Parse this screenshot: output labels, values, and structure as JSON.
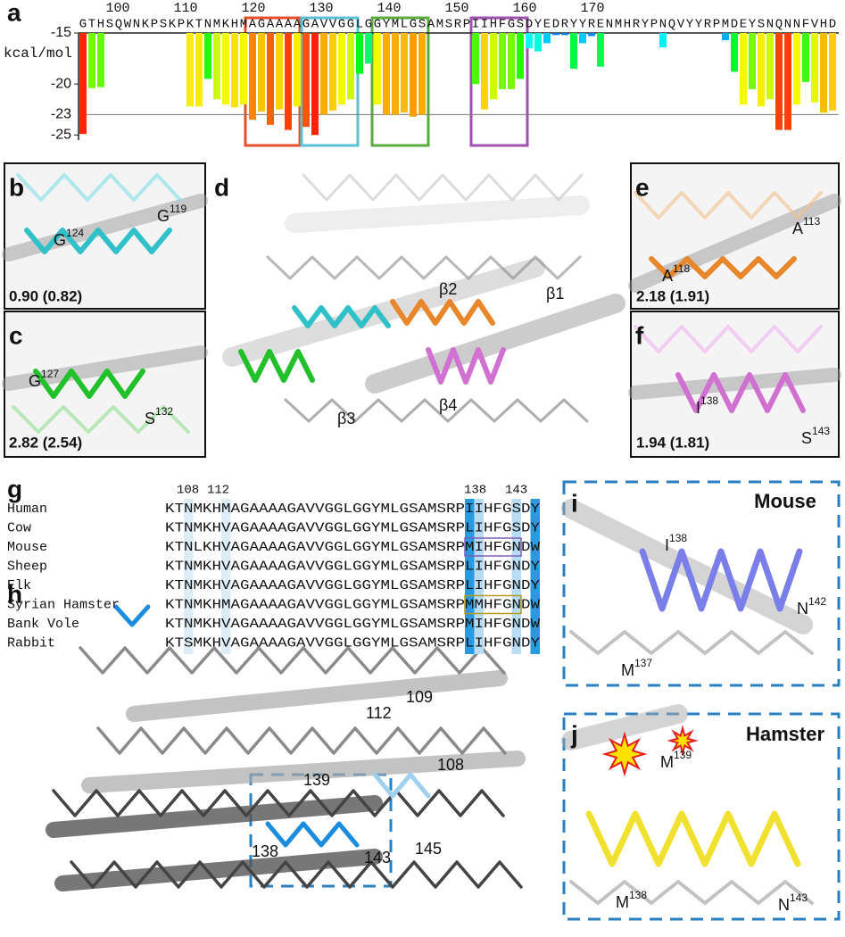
{
  "chart_data": {
    "type": "bar",
    "label": "a",
    "y_label": "kcal/mol",
    "categories": [
      "G",
      "T",
      "H",
      "S",
      "Q",
      "W",
      "N",
      "K",
      "P",
      "S",
      "K",
      "P",
      "K",
      "T",
      "N",
      "M",
      "K",
      "H",
      "M",
      "A",
      "G",
      "A",
      "A",
      "A",
      "A",
      "G",
      "A",
      "V",
      "V",
      "G",
      "G",
      "L",
      "G",
      "G",
      "Y",
      "M",
      "L",
      "G",
      "S",
      "A",
      "M",
      "S",
      "R",
      "P",
      "I",
      "I",
      "H",
      "F",
      "G",
      "S",
      "D",
      "Y",
      "E",
      "D",
      "R",
      "Y",
      "Y",
      "R",
      "E",
      "N",
      "M",
      "H",
      "R",
      "Y",
      "P",
      "N",
      "Q",
      "V",
      "Y",
      "Y",
      "R",
      "P",
      "M",
      "D",
      "E",
      "Y",
      "S",
      "N",
      "Q",
      "N",
      "N",
      "F",
      "V",
      "H",
      "D"
    ],
    "values": [
      -24.9,
      -20.4,
      -20.3,
      null,
      null,
      null,
      null,
      null,
      null,
      null,
      null,
      null,
      -22.2,
      -22.2,
      -19.5,
      -21.5,
      -22,
      -22.3,
      -22,
      -23.5,
      -22.7,
      -24,
      -22.5,
      -24.5,
      -22.2,
      -24.2,
      -25,
      -23,
      -22.6,
      -22,
      -21.5,
      -19,
      -18,
      -22,
      -23,
      -23,
      -22.8,
      -23.2,
      -23,
      null,
      null,
      null,
      null,
      null,
      -20,
      -22.5,
      -21.5,
      -20.5,
      -20.5,
      -19.5,
      -16.5,
      -16.8,
      -16,
      -15.2,
      -15.2,
      -18.5,
      -16,
      -15.3,
      -18.3,
      null,
      null,
      null,
      null,
      null,
      null,
      -16.4,
      null,
      null,
      null,
      null,
      null,
      null,
      -15.7,
      -18.8,
      -22,
      -20.5,
      -22.2,
      -21.5,
      -24.5,
      -24.5,
      -22,
      -19.8,
      -21.8,
      -22.8,
      -22.6
    ],
    "colormap": "rainbow",
    "ylim": [
      -15,
      -25.5
    ],
    "yticks": [
      -15,
      -20,
      -25
    ],
    "xticks": [
      100,
      110,
      120,
      130,
      140,
      150,
      160,
      170
    ],
    "reference_line": {
      "value": -23,
      "color": "#e02020"
    }
  },
  "panels": {
    "b": {
      "label": "b",
      "annotations": [
        {
          "text": "G",
          "sup": "119"
        },
        {
          "text": "G",
          "sup": "124"
        }
      ],
      "score": "0.90 (0.82)"
    },
    "c": {
      "label": "c",
      "annotations": [
        {
          "text": "G",
          "sup": "127"
        },
        {
          "text": "S",
          "sup": "132"
        }
      ],
      "score": "2.82 (2.54)"
    },
    "d": {
      "label": "d",
      "annotations": [
        "β2",
        "β1",
        "β3",
        "β4"
      ]
    },
    "e": {
      "label": "e",
      "annotations": [
        {
          "text": "A",
          "sup": "118"
        },
        {
          "text": "A",
          "sup": "113"
        }
      ],
      "score": "2.18 (1.91)"
    },
    "f": {
      "label": "f",
      "annotations": [
        {
          "text": "I",
          "sup": "138"
        },
        {
          "text": "S",
          "sup": "143"
        }
      ],
      "score": "1.94 (1.81)"
    },
    "h": {
      "label": "h",
      "annotations": [
        "109",
        "112",
        "108",
        "139",
        "138",
        "143",
        "145"
      ]
    },
    "i": {
      "label": "i",
      "title": "Mouse",
      "annotations": [
        {
          "text": "I",
          "sup": "138"
        },
        {
          "text": "M",
          "sup": "137"
        },
        {
          "text": "N",
          "sup": "142"
        }
      ]
    },
    "j": {
      "label": "j",
      "title": "Hamster",
      "annotations": [
        {
          "text": "M",
          "sup": "139"
        },
        {
          "text": "M",
          "sup": "138"
        },
        {
          "text": "N",
          "sup": "143"
        }
      ]
    }
  },
  "alignment": {
    "label": "g",
    "positions": [
      "108",
      "112",
      "138",
      "143"
    ],
    "rows": [
      {
        "species": "Human",
        "sequence": "KTNMKHMAGAAAAGAVVGGLGGYMLGSAMSRPIIHFGSDY"
      },
      {
        "species": "Cow",
        "sequence": "KTNMKHVAGAAAAGAVVGGLGGYMLGSAMSRPLIHFGSDY"
      },
      {
        "species": "Mouse",
        "sequence": "KTNLKHVAGAAAAGAVVGGLGGYMLGSAMSRPMIHFGNDW"
      },
      {
        "species": "Sheep",
        "sequence": "KTNMKHVAGAAAAGAVVGGLGGYMLGSAMSRPLIHFGNDY"
      },
      {
        "species": "Elk",
        "sequence": "KTNMKHVAGAAAAGAVVGGLGGYMLGSAMSRPLIHFGNDY"
      },
      {
        "species": "Syrian Hamster",
        "sequence": "KTNMKHMAGAAAAGAVVGGLGGYMLGSAMSRPMMHFGNDW"
      },
      {
        "species": "Bank Vole",
        "sequence": "KTNMKHVAGAAAAGAVVGGLGGYMLGSAMSRPMIHFGNDW"
      },
      {
        "species": "Rabbit",
        "sequence": "KTSMKHVAGAAAAGAVVGGLGGYMLGSAMSRPLIHFGNDY"
      }
    ]
  }
}
